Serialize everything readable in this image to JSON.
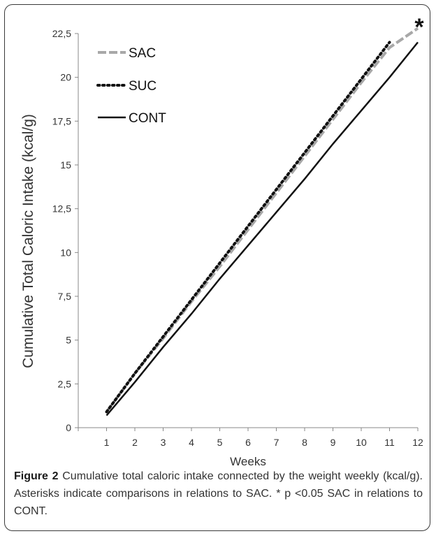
{
  "chart_data": {
    "type": "line",
    "xlabel": "Weeks",
    "ylabel": "Cumulative Total Caloric Intake (kcal/g)",
    "x": [
      1,
      2,
      3,
      4,
      5,
      6,
      7,
      8,
      9,
      10,
      11,
      12
    ],
    "x_ticks": [
      "1",
      "2",
      "3",
      "4",
      "5",
      "6",
      "7",
      "8",
      "9",
      "10",
      "11",
      "12"
    ],
    "y_ticks": [
      "0",
      "2,5",
      "5",
      "7,5",
      "10",
      "12,5",
      "15",
      "17,5",
      "20",
      "22,5"
    ],
    "y_tick_values": [
      0,
      2.5,
      5,
      7.5,
      10,
      12.5,
      15,
      17.5,
      20,
      22.5
    ],
    "ylim": [
      0,
      22.5
    ],
    "grid": false,
    "legend_position": "top-left",
    "annotation": "*",
    "series": [
      {
        "name": "SAC",
        "style": "dashed",
        "color": "#a8a8a8",
        "values": [
          0.9,
          3.1,
          5.1,
          7.2,
          9.2,
          11.3,
          13.4,
          15.5,
          17.6,
          19.7,
          21.7,
          22.8
        ]
      },
      {
        "name": "SUC",
        "style": "dotted",
        "color": "#111111",
        "values": [
          0.9,
          3.1,
          5.2,
          7.3,
          9.4,
          11.5,
          13.6,
          15.7,
          17.8,
          19.9,
          22.0,
          null
        ]
      },
      {
        "name": "CONT",
        "style": "solid",
        "color": "#111111",
        "values": [
          0.7,
          2.6,
          4.6,
          6.5,
          8.5,
          10.4,
          12.3,
          14.2,
          16.2,
          18.1,
          20.0,
          22.0
        ]
      }
    ]
  },
  "caption": {
    "label": "Figure 2",
    "text": " Cumulative total caloric intake connected by the weight weekly (kcal/g). Asterisks indicate comparisons in relations to SAC. * p <0.05 SAC in relations to CONT."
  }
}
